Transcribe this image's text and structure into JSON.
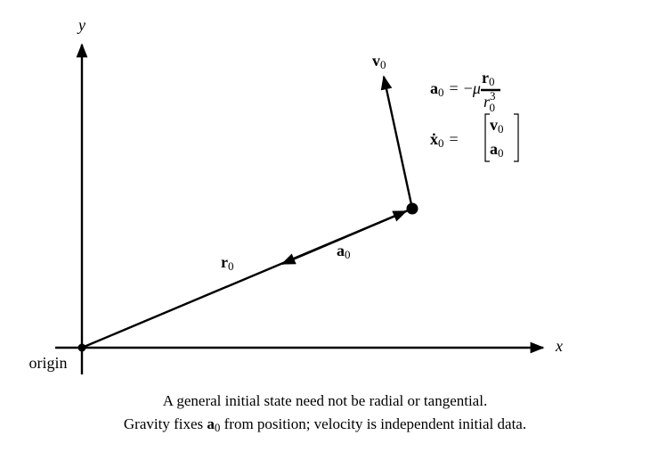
{
  "axes": {
    "x_label": "x",
    "y_label": "y",
    "origin_label": "origin"
  },
  "vectors": {
    "r": {
      "base": "r",
      "sub": "0"
    },
    "a": {
      "base": "a",
      "sub": "0"
    },
    "v": {
      "base": "v",
      "sub": "0"
    }
  },
  "equations": {
    "acceleration": {
      "lhs": {
        "base": "a",
        "sub": "0"
      },
      "relation": "=",
      "sign": "−",
      "coefficient": "μ",
      "numerator": {
        "base": "r",
        "sub": "0"
      },
      "denominator": {
        "base": "r",
        "sub": "0",
        "sup": "3"
      }
    },
    "state": {
      "lhs": {
        "base": "ẋ",
        "sub": "0"
      },
      "relation": "=",
      "entries": [
        {
          "base": "v",
          "sub": "0"
        },
        {
          "base": "a",
          "sub": "0"
        }
      ]
    }
  },
  "caption": {
    "line1": "A general initial state need not be radial or tangential.",
    "line2": {
      "before": "Gravity fixes ",
      "symbol": {
        "base": "a",
        "sub": "0"
      },
      "after": " from position; velocity is independent initial data."
    }
  }
}
